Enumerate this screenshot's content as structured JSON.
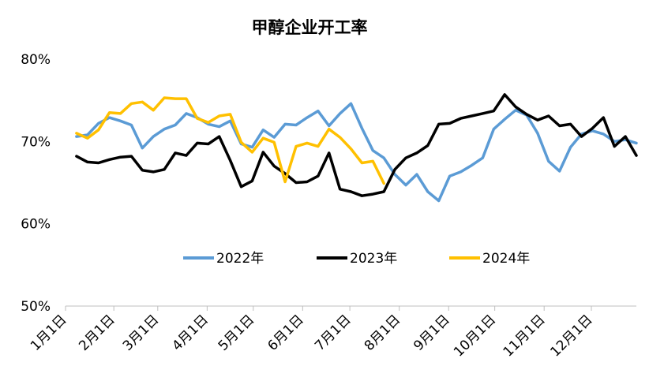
{
  "chart_data": {
    "type": "line",
    "title": "甲醇企业开工率",
    "y_ticks": [
      "50%",
      "60%",
      "70%",
      "80%"
    ],
    "y_tick_values": [
      50,
      60,
      70,
      80
    ],
    "ylim": [
      50,
      80
    ],
    "x_range": [
      0,
      52
    ],
    "x_ticks": [
      "1月1日",
      "2月1日",
      "3月1日",
      "4月1日",
      "5月1日",
      "6月1日",
      "7月1日",
      "8月1日",
      "9月1日",
      "10月1日",
      "11月1日",
      "12月1日"
    ],
    "x_tick_values": [
      0,
      4.4,
      8.4,
      12.9,
      17.1,
      21.6,
      25.9,
      30.4,
      34.9,
      39.1,
      43.6,
      47.9
    ],
    "grid": false,
    "legend_position": "center",
    "series": [
      {
        "name": "2022年",
        "color": "#5b9bd5",
        "x": [
          1,
          2,
          3,
          4,
          5,
          6,
          7,
          8,
          9,
          10,
          11,
          12,
          13,
          14,
          15,
          16,
          17,
          18,
          19,
          20,
          21,
          22,
          23,
          24,
          25,
          26,
          27,
          28,
          29,
          30,
          31,
          32,
          33,
          34,
          35,
          36,
          37,
          38,
          39,
          40,
          41,
          42,
          43,
          44,
          45,
          46,
          47,
          48,
          49,
          50,
          51,
          52
        ],
        "values": [
          70.6,
          70.8,
          72.2,
          72.9,
          72.5,
          72.0,
          69.2,
          70.6,
          71.5,
          72.0,
          73.4,
          72.9,
          72.1,
          71.8,
          72.5,
          69.7,
          69.3,
          71.4,
          70.5,
          72.1,
          72.0,
          72.9,
          73.7,
          71.9,
          73.4,
          74.6,
          71.6,
          68.9,
          68.0,
          66.0,
          64.7,
          66.0,
          63.9,
          62.8,
          65.8,
          66.3,
          67.1,
          68.0,
          71.5,
          72.7,
          73.8,
          73.2,
          71.0,
          67.6,
          66.4,
          69.3,
          70.9,
          71.3,
          70.9,
          70.0,
          70.2,
          69.8
        ]
      },
      {
        "name": "2023年",
        "color": "#000000",
        "x": [
          1,
          2,
          3,
          4,
          5,
          6,
          7,
          8,
          9,
          10,
          11,
          12,
          13,
          14,
          15,
          16,
          17,
          18,
          19,
          20,
          21,
          22,
          23,
          24,
          25,
          26,
          27,
          28,
          29,
          30,
          31,
          32,
          33,
          34,
          35,
          36,
          37,
          38,
          39,
          40,
          41,
          42,
          43,
          44,
          45,
          46,
          47,
          48,
          49,
          50,
          51,
          52
        ],
        "values": [
          68.2,
          67.5,
          67.4,
          67.8,
          68.1,
          68.2,
          66.5,
          66.3,
          66.6,
          68.6,
          68.3,
          69.8,
          69.7,
          70.6,
          67.7,
          64.5,
          65.2,
          68.7,
          67.0,
          66.1,
          65.0,
          65.1,
          65.8,
          68.6,
          64.2,
          63.9,
          63.4,
          63.6,
          63.9,
          66.6,
          68.0,
          68.6,
          69.5,
          72.1,
          72.2,
          72.8,
          73.1,
          73.4,
          73.7,
          75.7,
          74.2,
          73.3,
          72.6,
          73.1,
          71.9,
          72.1,
          70.6,
          71.6,
          72.9,
          69.4,
          70.6,
          68.3
        ]
      },
      {
        "name": "2024年",
        "color": "#ffc000",
        "x": [
          1,
          2,
          3,
          4,
          5,
          6,
          7,
          8,
          9,
          10,
          11,
          12,
          13,
          14,
          15,
          16,
          17,
          18,
          19,
          20,
          21,
          22,
          23,
          24,
          25,
          26,
          27,
          28,
          29
        ],
        "values": [
          71.0,
          70.4,
          71.4,
          73.5,
          73.4,
          74.6,
          74.8,
          73.8,
          75.3,
          75.2,
          75.2,
          72.8,
          72.3,
          73.1,
          73.3,
          69.9,
          68.7,
          70.4,
          69.9,
          65.1,
          69.4,
          69.8,
          69.4,
          71.5,
          70.5,
          69.1,
          67.4,
          67.6,
          64.9
        ]
      }
    ]
  }
}
